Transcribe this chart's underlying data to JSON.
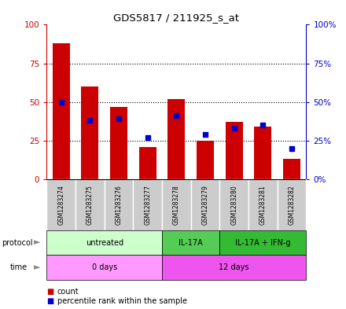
{
  "title": "GDS5817 / 211925_s_at",
  "samples": [
    "GSM1283274",
    "GSM1283275",
    "GSM1283276",
    "GSM1283277",
    "GSM1283278",
    "GSM1283279",
    "GSM1283280",
    "GSM1283281",
    "GSM1283282"
  ],
  "counts": [
    88,
    60,
    47,
    21,
    52,
    25,
    37,
    34,
    13
  ],
  "percentile_ranks": [
    50,
    38,
    39,
    27,
    41,
    29,
    33,
    35,
    20
  ],
  "ylim_left": [
    0,
    100
  ],
  "ylim_right": [
    0,
    100
  ],
  "yticks_left": [
    0,
    25,
    50,
    75,
    100
  ],
  "yticks_right": [
    0,
    25,
    50,
    75,
    100
  ],
  "ytick_labels_right": [
    "0%",
    "25%",
    "50%",
    "75%",
    "100%"
  ],
  "bar_color": "#cc0000",
  "dot_color": "#0000cc",
  "left_yaxis_color": "#cc0000",
  "right_yaxis_color": "#0000cc",
  "protocol_groups": [
    {
      "label": "untreated",
      "start": 0,
      "end": 4,
      "color": "#ccffcc"
    },
    {
      "label": "IL-17A",
      "start": 4,
      "end": 6,
      "color": "#55cc55"
    },
    {
      "label": "IL-17A + IFN-g",
      "start": 6,
      "end": 9,
      "color": "#33bb33"
    }
  ],
  "time_groups": [
    {
      "label": "0 days",
      "start": 0,
      "end": 4,
      "color": "#ff99ff"
    },
    {
      "label": "12 days",
      "start": 4,
      "end": 9,
      "color": "#ee55ee"
    }
  ],
  "sample_bg_color": "#cccccc",
  "legend_count_color": "#cc0000",
  "legend_dot_color": "#0000cc",
  "fig_bg": "#ffffff"
}
